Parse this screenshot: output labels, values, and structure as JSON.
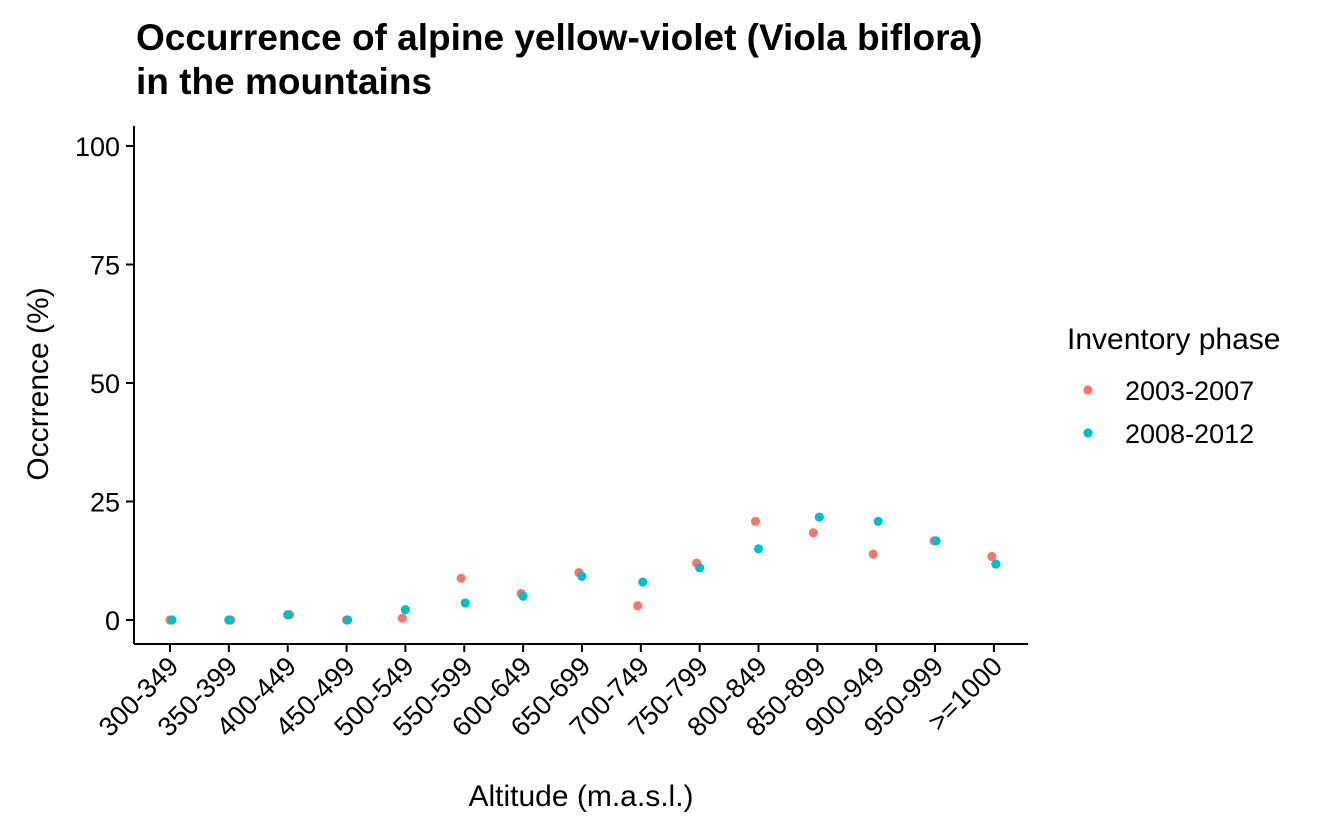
{
  "chart_data": {
    "type": "scatter",
    "title_lines": [
      "Occurrence of alpine yellow-violet (Viola biflora)",
      "in the mountains"
    ],
    "xlabel": "Altitude (m.a.s.l.)",
    "ylabel": "Occrrence (%)",
    "categories": [
      "300-349",
      "350-399",
      "400-449",
      "450-499",
      "500-549",
      "550-599",
      "600-649",
      "650-699",
      "700-749",
      "750-799",
      "800-849",
      "850-899",
      "900-949",
      "950-999",
      ">=1000"
    ],
    "ylim": [
      -5,
      105
    ],
    "yticks": [
      0,
      25,
      50,
      75,
      100
    ],
    "grid": false,
    "legend": {
      "title": "Inventory phase",
      "position": "right"
    },
    "series": [
      {
        "name": "2003-2007",
        "color": "#F8766D",
        "values": [
          0.0,
          0.0,
          1.1,
          0.0,
          0.4,
          8.8,
          5.6,
          10.0,
          3.0,
          12.0,
          20.8,
          18.4,
          13.9,
          16.7,
          13.4
        ]
      },
      {
        "name": "2008-2012",
        "color": "#00BFC4",
        "values": [
          0.0,
          0.0,
          1.1,
          0.0,
          2.2,
          3.6,
          5.0,
          9.2,
          8.0,
          11.0,
          15.0,
          21.7,
          20.8,
          16.7,
          11.8
        ]
      }
    ]
  }
}
